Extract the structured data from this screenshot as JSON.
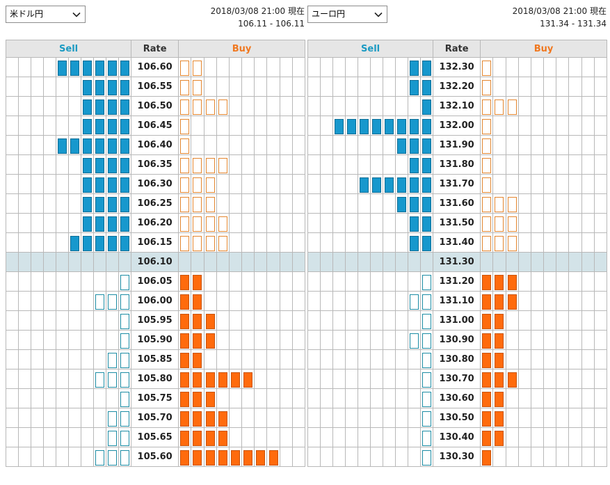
{
  "headers": {
    "sell": "Sell",
    "rate": "Rate",
    "buy": "Buy"
  },
  "colors": {
    "sell_fill": "#1798cd",
    "sell_outline": "#1c8ca4",
    "buy_fill": "#ff6b0d",
    "buy_outline": "#e4862f",
    "current_row": "#d3e3e8"
  },
  "panels": [
    {
      "pair_select": {
        "value": "米ドル円"
      },
      "timestamp": "2018/03/08 21:00 現在",
      "bid_ask": "106.11 - 106.11",
      "rows": [
        {
          "rate": "106.60",
          "sell": 6,
          "buy": 2,
          "type": "ask"
        },
        {
          "rate": "106.55",
          "sell": 4,
          "buy": 2,
          "type": "ask"
        },
        {
          "rate": "106.50",
          "sell": 4,
          "buy": 4,
          "type": "ask"
        },
        {
          "rate": "106.45",
          "sell": 4,
          "buy": 1,
          "type": "ask"
        },
        {
          "rate": "106.40",
          "sell": 6,
          "buy": 1,
          "type": "ask"
        },
        {
          "rate": "106.35",
          "sell": 4,
          "buy": 4,
          "type": "ask"
        },
        {
          "rate": "106.30",
          "sell": 4,
          "buy": 3,
          "type": "ask"
        },
        {
          "rate": "106.25",
          "sell": 4,
          "buy": 3,
          "type": "ask"
        },
        {
          "rate": "106.20",
          "sell": 4,
          "buy": 4,
          "type": "ask"
        },
        {
          "rate": "106.15",
          "sell": 5,
          "buy": 4,
          "type": "ask"
        },
        {
          "rate": "106.10",
          "sell": 0,
          "buy": 0,
          "type": "current"
        },
        {
          "rate": "106.05",
          "sell": 1,
          "buy": 2,
          "type": "bid"
        },
        {
          "rate": "106.00",
          "sell": 3,
          "buy": 2,
          "type": "bid"
        },
        {
          "rate": "105.95",
          "sell": 1,
          "buy": 3,
          "type": "bid"
        },
        {
          "rate": "105.90",
          "sell": 1,
          "buy": 3,
          "type": "bid"
        },
        {
          "rate": "105.85",
          "sell": 2,
          "buy": 2,
          "type": "bid"
        },
        {
          "rate": "105.80",
          "sell": 3,
          "buy": 6,
          "type": "bid"
        },
        {
          "rate": "105.75",
          "sell": 1,
          "buy": 3,
          "type": "bid"
        },
        {
          "rate": "105.70",
          "sell": 2,
          "buy": 4,
          "type": "bid"
        },
        {
          "rate": "105.65",
          "sell": 2,
          "buy": 4,
          "type": "bid"
        },
        {
          "rate": "105.60",
          "sell": 3,
          "buy": 8,
          "type": "bid"
        }
      ]
    },
    {
      "pair_select": {
        "value": "ユーロ円"
      },
      "timestamp": "2018/03/08 21:00 現在",
      "bid_ask": "131.34 - 131.34",
      "rows": [
        {
          "rate": "132.30",
          "sell": 2,
          "buy": 1,
          "type": "ask"
        },
        {
          "rate": "132.20",
          "sell": 2,
          "buy": 1,
          "type": "ask"
        },
        {
          "rate": "132.10",
          "sell": 1,
          "buy": 3,
          "type": "ask"
        },
        {
          "rate": "132.00",
          "sell": 8,
          "buy": 1,
          "type": "ask"
        },
        {
          "rate": "131.90",
          "sell": 3,
          "buy": 1,
          "type": "ask"
        },
        {
          "rate": "131.80",
          "sell": 2,
          "buy": 1,
          "type": "ask"
        },
        {
          "rate": "131.70",
          "sell": 6,
          "buy": 1,
          "type": "ask"
        },
        {
          "rate": "131.60",
          "sell": 3,
          "buy": 3,
          "type": "ask"
        },
        {
          "rate": "131.50",
          "sell": 2,
          "buy": 3,
          "type": "ask"
        },
        {
          "rate": "131.40",
          "sell": 2,
          "buy": 3,
          "type": "ask"
        },
        {
          "rate": "131.30",
          "sell": 0,
          "buy": 0,
          "type": "current"
        },
        {
          "rate": "131.20",
          "sell": 1,
          "buy": 3,
          "type": "bid"
        },
        {
          "rate": "131.10",
          "sell": 2,
          "buy": 3,
          "type": "bid"
        },
        {
          "rate": "131.00",
          "sell": 1,
          "buy": 2,
          "type": "bid"
        },
        {
          "rate": "130.90",
          "sell": 2,
          "buy": 2,
          "type": "bid"
        },
        {
          "rate": "130.80",
          "sell": 1,
          "buy": 2,
          "type": "bid"
        },
        {
          "rate": "130.70",
          "sell": 1,
          "buy": 3,
          "type": "bid"
        },
        {
          "rate": "130.60",
          "sell": 1,
          "buy": 2,
          "type": "bid"
        },
        {
          "rate": "130.50",
          "sell": 1,
          "buy": 2,
          "type": "bid"
        },
        {
          "rate": "130.40",
          "sell": 1,
          "buy": 2,
          "type": "bid"
        },
        {
          "rate": "130.30",
          "sell": 1,
          "buy": 1,
          "type": "bid"
        }
      ]
    }
  ]
}
